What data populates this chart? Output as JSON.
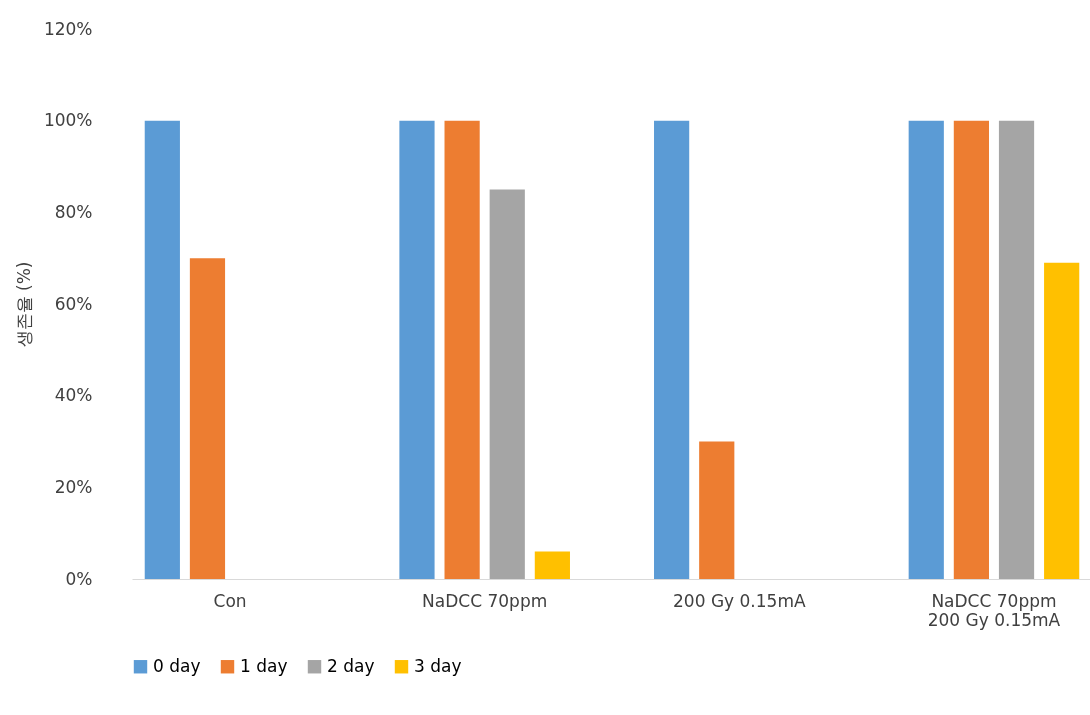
{
  "chart_data": {
    "type": "bar",
    "ylabel": "생존율 (%)",
    "categories": [
      "Con",
      "NaDCC 70ppm",
      "200 Gy 0.15mA",
      "NaDCC 70ppm\n200 Gy 0.15mA"
    ],
    "series": [
      {
        "name": "0 day",
        "color": "#5b9bd5",
        "values": [
          100,
          100,
          100,
          100
        ]
      },
      {
        "name": "1 day",
        "color": "#ed7d31",
        "values": [
          70,
          100,
          30,
          100
        ]
      },
      {
        "name": "2 day",
        "color": "#a5a5a5",
        "values": [
          0,
          85,
          0,
          100
        ]
      },
      {
        "name": "3 day",
        "color": "#ffc000",
        "values": [
          0,
          6,
          0,
          69
        ]
      }
    ],
    "ylim": [
      0,
      120
    ],
    "yticks": [
      {
        "value": 0,
        "label": "0%"
      },
      {
        "value": 20,
        "label": "20%"
      },
      {
        "value": 40,
        "label": "40%"
      },
      {
        "value": 60,
        "label": "60%"
      },
      {
        "value": 80,
        "label": "80%"
      },
      {
        "value": 100,
        "label": "100%"
      },
      {
        "value": 120,
        "label": "120%"
      }
    ],
    "grid": false,
    "legend": "bottom"
  }
}
